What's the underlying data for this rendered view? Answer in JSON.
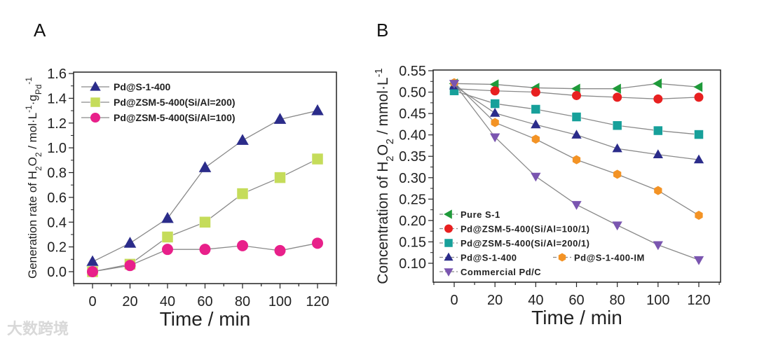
{
  "watermark": "大数跨境",
  "chart_data": [
    {
      "panel": "A",
      "type": "line",
      "xlabel": "Time / min",
      "ylabel": "Generation rate of H2O2 / mol·L-1·gPd-1",
      "ylabel_parts": [
        "Generation rate of H",
        "2",
        "O",
        "2",
        " / mol·L",
        "-1",
        "·g",
        "Pd",
        "-1"
      ],
      "x": [
        0,
        20,
        40,
        60,
        80,
        100,
        120
      ],
      "xticks": [
        "0",
        "20",
        "40",
        "60",
        "80",
        "100",
        "120"
      ],
      "yticks": [
        "0.0",
        "0.2",
        "0.4",
        "0.6",
        "0.8",
        "1.0",
        "1.2",
        "1.4",
        "1.6"
      ],
      "xlim": [
        -10,
        128
      ],
      "ylim": [
        -0.09,
        1.6
      ],
      "legend_position": "top-left",
      "series": [
        {
          "name": "Pd@S-1-400",
          "marker": "triangle-up",
          "color": "#2b2c8a",
          "values": [
            0.08,
            0.23,
            0.43,
            0.84,
            1.06,
            1.23,
            1.3
          ]
        },
        {
          "name": "Pd@ZSM-5-400(Si/Al=200)",
          "marker": "square",
          "color": "#c5dc5a",
          "values": [
            0.0,
            0.06,
            0.28,
            0.4,
            0.63,
            0.76,
            0.91
          ]
        },
        {
          "name": "Pd@ZSM-5-400(Si/Al=100)",
          "marker": "circle",
          "color": "#e8208a",
          "values": [
            0.0,
            0.05,
            0.18,
            0.18,
            0.21,
            0.17,
            0.23
          ]
        }
      ]
    },
    {
      "panel": "B",
      "type": "line",
      "xlabel": "Time / min",
      "ylabel": "Concentration of H2O2 / mmol·L-1",
      "ylabel_parts": [
        "Concentration of H",
        "2",
        "O",
        "2",
        " / mmol·L",
        "-1"
      ],
      "x": [
        0,
        20,
        40,
        60,
        80,
        100,
        120
      ],
      "xticks": [
        "0",
        "20",
        "40",
        "60",
        "80",
        "100",
        "120"
      ],
      "yticks": [
        "0.10",
        "0.15",
        "0.20",
        "0.25",
        "0.30",
        "0.35",
        "0.40",
        "0.45",
        "0.50",
        "0.55"
      ],
      "xlim": [
        -10,
        128
      ],
      "ylim": [
        0.06,
        0.55
      ],
      "legend_position": "bottom-left",
      "series": [
        {
          "name": "Pure S-1",
          "marker": "triangle-left",
          "color": "#1f9a3a",
          "values": [
            0.52,
            0.518,
            0.51,
            0.508,
            0.508,
            0.52,
            0.512
          ]
        },
        {
          "name": "Pd@ZSM-5-400(Si/Al=100/1)",
          "marker": "circle",
          "color": "#e82020",
          "values": [
            0.508,
            0.503,
            0.5,
            0.492,
            0.488,
            0.484,
            0.488
          ]
        },
        {
          "name": "Pd@ZSM-5-400(Si/Al=200/1)",
          "marker": "square",
          "color": "#17a09a",
          "values": [
            0.503,
            0.473,
            0.46,
            0.442,
            0.422,
            0.41,
            0.401
          ]
        },
        {
          "name": "Pd@S-1-400",
          "marker": "triangle-up",
          "color": "#2b2c8a",
          "values": [
            0.515,
            0.451,
            0.424,
            0.4,
            0.368,
            0.354,
            0.342
          ]
        },
        {
          "name": "Pd@S-1-400-IM",
          "marker": "hexagon",
          "color": "#f39325",
          "values": [
            0.522,
            0.429,
            0.39,
            0.342,
            0.308,
            0.27,
            0.212
          ]
        },
        {
          "name": "Commercial Pd/C",
          "marker": "triangle-down",
          "color": "#7a55b0",
          "values": [
            0.52,
            0.395,
            0.303,
            0.237,
            0.189,
            0.143,
            0.108
          ]
        }
      ]
    }
  ]
}
